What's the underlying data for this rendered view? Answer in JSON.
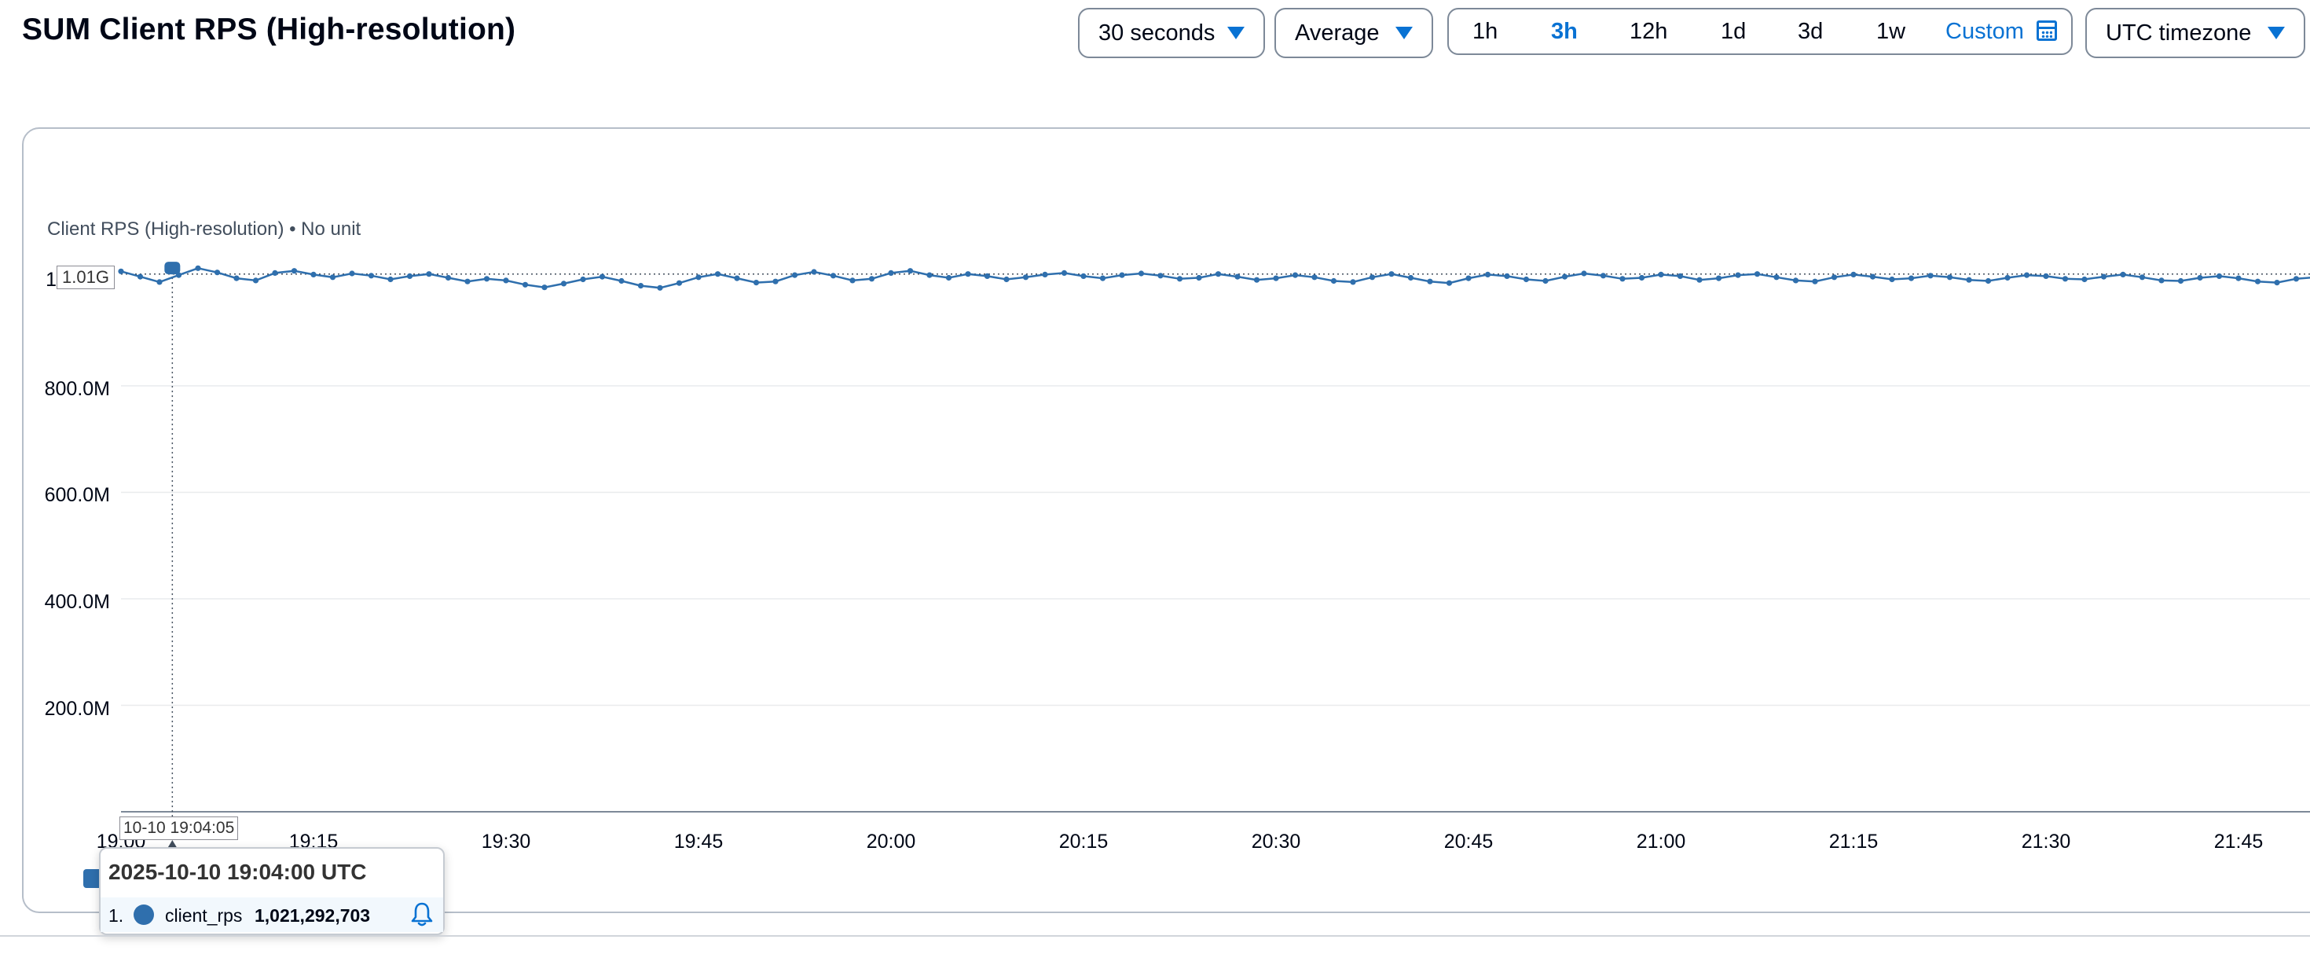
{
  "header": {
    "title": "SUM Client RPS (High-resolution)",
    "period": "30 seconds",
    "statistic": "Average",
    "ranges": [
      "1h",
      "3h",
      "12h",
      "1d",
      "3d",
      "1w"
    ],
    "active_range": "3h",
    "custom_label": "Custom",
    "timezone": "UTC timezone"
  },
  "chart": {
    "unit_label": "Client RPS (High-resolution) • No unit",
    "top_tick_fragment": "1",
    "hover_value_flag": "1.01G",
    "hover_time_flag": "10-10 19:04:05"
  },
  "tooltip": {
    "title": "2025-10-10 19:04:00 UTC",
    "index": "1.",
    "metric": "client_rps",
    "value": "1,021,292,703"
  },
  "colors": {
    "series": "#2f6fad",
    "accent": "#0972d3",
    "border": "#7d8998"
  },
  "icons": {
    "dropdown": "caret-down-icon",
    "custom": "calendar-icon",
    "alarm": "bell-icon"
  },
  "chart_data": {
    "type": "line",
    "ylim": [
      0,
      1050000000
    ],
    "y_ticks": [
      {
        "value": 200000000,
        "label": "200.0M"
      },
      {
        "value": 400000000,
        "label": "400.0M"
      },
      {
        "value": 600000000,
        "label": "600.0M"
      },
      {
        "value": 800000000,
        "label": "800.0M"
      }
    ],
    "x_ticks": [
      "19:00",
      "19:15",
      "19:30",
      "19:45",
      "20:00",
      "20:15",
      "20:30",
      "20:45",
      "21:00",
      "21:15",
      "21:30",
      "21:45"
    ],
    "x_tick_minutes": [
      0,
      15,
      30,
      45,
      60,
      75,
      90,
      105,
      120,
      135,
      150,
      165
    ],
    "grid": true,
    "reference_line": 1010000000,
    "series": [
      {
        "name": "client_rps",
        "interval_minutes": 1.5,
        "values": [
          1015,
          1005,
          995,
          1008,
          1021,
          1013,
          1002,
          998,
          1012,
          1016,
          1009,
          1004,
          1011,
          1007,
          1000,
          1006,
          1010,
          1003,
          996,
          1001,
          998,
          990,
          985,
          992,
          1000,
          1005,
          997,
          988,
          984,
          993,
          1004,
          1010,
          1002,
          994,
          996,
          1008,
          1014,
          1007,
          998,
          1001,
          1012,
          1016,
          1008,
          1003,
          1010,
          1006,
          1000,
          1004,
          1009,
          1012,
          1006,
          1002,
          1008,
          1011,
          1007,
          1001,
          1003,
          1010,
          1005,
          999,
          1002,
          1008,
          1004,
          997,
          995,
          1004,
          1010,
          1003,
          996,
          993,
          1002,
          1009,
          1006,
          1000,
          997,
          1005,
          1011,
          1007,
          1001,
          1003,
          1009,
          1006,
          999,
          1002,
          1008,
          1010,
          1004,
          998,
          996,
          1004,
          1009,
          1005,
          1000,
          1002,
          1007,
          1004,
          999,
          997,
          1003,
          1008,
          1006,
          1001,
          1000,
          1005,
          1009,
          1004,
          998,
          997,
          1003,
          1006,
          1002,
          996,
          994,
          1001,
          1004,
          1000,
          996,
          998,
          1003,
          1001
        ]
      }
    ],
    "values_unit_multiplier": 1000000,
    "hover": {
      "x_minute": 4,
      "value": 1021292703
    }
  }
}
